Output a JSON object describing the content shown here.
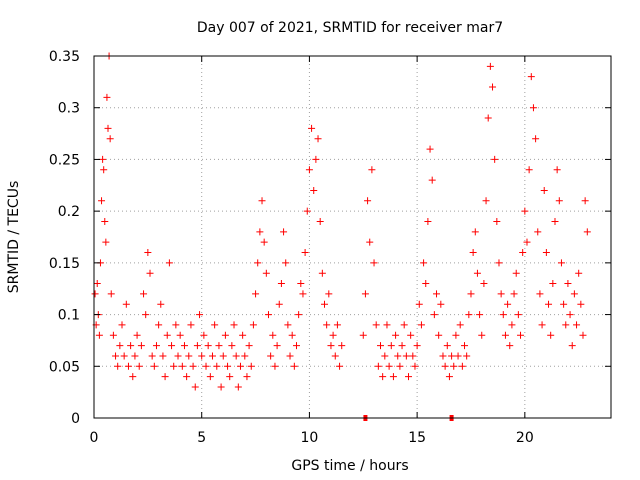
{
  "chart_data": {
    "type": "scatter",
    "title": "Day 007 of 2021, SRMTID for receiver mar7",
    "xlabel": "GPS time / hours",
    "ylabel": "SRMTID / TECUs",
    "xlim": [
      0,
      24
    ],
    "ylim": [
      0,
      0.35
    ],
    "xticks": [
      0,
      5,
      10,
      15,
      20
    ],
    "yticks": [
      0,
      0.05,
      0.1,
      0.15,
      0.2,
      0.25,
      0.3,
      0.35
    ],
    "xtick_labels": [
      "0",
      "5",
      "10",
      "15",
      "20"
    ],
    "ytick_labels": [
      "0",
      "0.05",
      "0.1",
      "0.15",
      "0.2",
      "0.25",
      "0.3",
      "0.35"
    ],
    "grid": true,
    "marker": "+",
    "color": "#ff0000",
    "data_gap_hours": [
      11.6,
      12.4
    ],
    "zero_markers_x": [
      12.6,
      16.6
    ],
    "series": [
      {
        "name": "SRMTID",
        "points": [
          [
            0.05,
            0.12
          ],
          [
            0.1,
            0.09
          ],
          [
            0.15,
            0.13
          ],
          [
            0.2,
            0.1
          ],
          [
            0.25,
            0.08
          ],
          [
            0.3,
            0.15
          ],
          [
            0.35,
            0.21
          ],
          [
            0.4,
            0.25
          ],
          [
            0.45,
            0.24
          ],
          [
            0.5,
            0.19
          ],
          [
            0.55,
            0.17
          ],
          [
            0.6,
            0.31
          ],
          [
            0.65,
            0.28
          ],
          [
            0.7,
            0.35
          ],
          [
            0.75,
            0.27
          ],
          [
            0.8,
            0.12
          ],
          [
            0.9,
            0.08
          ],
          [
            1.0,
            0.06
          ],
          [
            1.1,
            0.05
          ],
          [
            1.2,
            0.07
          ],
          [
            1.3,
            0.09
          ],
          [
            1.4,
            0.06
          ],
          [
            1.5,
            0.11
          ],
          [
            1.6,
            0.05
          ],
          [
            1.7,
            0.07
          ],
          [
            1.8,
            0.04
          ],
          [
            1.9,
            0.06
          ],
          [
            2.0,
            0.08
          ],
          [
            2.1,
            0.05
          ],
          [
            2.2,
            0.07
          ],
          [
            2.3,
            0.12
          ],
          [
            2.4,
            0.1
          ],
          [
            2.5,
            0.16
          ],
          [
            2.6,
            0.14
          ],
          [
            2.7,
            0.06
          ],
          [
            2.8,
            0.05
          ],
          [
            2.9,
            0.07
          ],
          [
            3.0,
            0.09
          ],
          [
            3.1,
            0.11
          ],
          [
            3.2,
            0.06
          ],
          [
            3.3,
            0.04
          ],
          [
            3.4,
            0.08
          ],
          [
            3.5,
            0.15
          ],
          [
            3.6,
            0.07
          ],
          [
            3.7,
            0.05
          ],
          [
            3.8,
            0.09
          ],
          [
            3.9,
            0.06
          ],
          [
            4.0,
            0.08
          ],
          [
            4.1,
            0.05
          ],
          [
            4.2,
            0.07
          ],
          [
            4.3,
            0.04
          ],
          [
            4.4,
            0.06
          ],
          [
            4.5,
            0.09
          ],
          [
            4.6,
            0.05
          ],
          [
            4.7,
            0.03
          ],
          [
            4.8,
            0.07
          ],
          [
            4.9,
            0.1
          ],
          [
            5.0,
            0.06
          ],
          [
            5.1,
            0.08
          ],
          [
            5.2,
            0.05
          ],
          [
            5.3,
            0.07
          ],
          [
            5.4,
            0.04
          ],
          [
            5.5,
            0.06
          ],
          [
            5.6,
            0.09
          ],
          [
            5.7,
            0.05
          ],
          [
            5.8,
            0.07
          ],
          [
            5.9,
            0.03
          ],
          [
            6.0,
            0.06
          ],
          [
            6.1,
            0.08
          ],
          [
            6.2,
            0.05
          ],
          [
            6.3,
            0.04
          ],
          [
            6.4,
            0.07
          ],
          [
            6.5,
            0.09
          ],
          [
            6.6,
            0.06
          ],
          [
            6.7,
            0.03
          ],
          [
            6.8,
            0.05
          ],
          [
            6.9,
            0.08
          ],
          [
            7.0,
            0.06
          ],
          [
            7.1,
            0.04
          ],
          [
            7.2,
            0.07
          ],
          [
            7.3,
            0.05
          ],
          [
            7.4,
            0.09
          ],
          [
            7.5,
            0.12
          ],
          [
            7.6,
            0.15
          ],
          [
            7.7,
            0.18
          ],
          [
            7.8,
            0.21
          ],
          [
            7.9,
            0.17
          ],
          [
            8.0,
            0.14
          ],
          [
            8.1,
            0.1
          ],
          [
            8.2,
            0.06
          ],
          [
            8.3,
            0.08
          ],
          [
            8.4,
            0.05
          ],
          [
            8.5,
            0.07
          ],
          [
            8.6,
            0.11
          ],
          [
            8.7,
            0.13
          ],
          [
            8.8,
            0.18
          ],
          [
            8.9,
            0.15
          ],
          [
            9.0,
            0.09
          ],
          [
            9.1,
            0.06
          ],
          [
            9.2,
            0.08
          ],
          [
            9.3,
            0.05
          ],
          [
            9.4,
            0.07
          ],
          [
            9.5,
            0.1
          ],
          [
            9.6,
            0.13
          ],
          [
            9.7,
            0.12
          ],
          [
            9.8,
            0.16
          ],
          [
            9.9,
            0.2
          ],
          [
            10.0,
            0.24
          ],
          [
            10.1,
            0.28
          ],
          [
            10.2,
            0.22
          ],
          [
            10.3,
            0.25
          ],
          [
            10.4,
            0.27
          ],
          [
            10.5,
            0.19
          ],
          [
            10.6,
            0.14
          ],
          [
            10.7,
            0.11
          ],
          [
            10.8,
            0.09
          ],
          [
            10.9,
            0.12
          ],
          [
            11.0,
            0.07
          ],
          [
            11.1,
            0.08
          ],
          [
            11.2,
            0.06
          ],
          [
            11.3,
            0.09
          ],
          [
            11.4,
            0.05
          ],
          [
            11.5,
            0.07
          ],
          [
            12.5,
            0.08
          ],
          [
            12.6,
            0.12
          ],
          [
            12.7,
            0.21
          ],
          [
            12.8,
            0.17
          ],
          [
            12.9,
            0.24
          ],
          [
            13.0,
            0.15
          ],
          [
            13.1,
            0.09
          ],
          [
            13.2,
            0.05
          ],
          [
            13.3,
            0.07
          ],
          [
            13.4,
            0.04
          ],
          [
            13.5,
            0.06
          ],
          [
            13.6,
            0.09
          ],
          [
            13.7,
            0.05
          ],
          [
            13.8,
            0.07
          ],
          [
            13.9,
            0.04
          ],
          [
            14.0,
            0.08
          ],
          [
            14.1,
            0.06
          ],
          [
            14.2,
            0.05
          ],
          [
            14.3,
            0.07
          ],
          [
            14.4,
            0.09
          ],
          [
            14.5,
            0.06
          ],
          [
            14.6,
            0.04
          ],
          [
            14.7,
            0.08
          ],
          [
            14.8,
            0.06
          ],
          [
            14.9,
            0.05
          ],
          [
            15.0,
            0.07
          ],
          [
            15.1,
            0.11
          ],
          [
            15.2,
            0.09
          ],
          [
            15.3,
            0.15
          ],
          [
            15.4,
            0.13
          ],
          [
            15.5,
            0.19
          ],
          [
            15.6,
            0.26
          ],
          [
            15.7,
            0.23
          ],
          [
            15.8,
            0.1
          ],
          [
            15.9,
            0.12
          ],
          [
            16.0,
            0.08
          ],
          [
            16.1,
            0.11
          ],
          [
            16.2,
            0.06
          ],
          [
            16.3,
            0.05
          ],
          [
            16.4,
            0.07
          ],
          [
            16.5,
            0.04
          ],
          [
            16.6,
            0.06
          ],
          [
            16.7,
            0.05
          ],
          [
            16.8,
            0.08
          ],
          [
            16.9,
            0.06
          ],
          [
            17.0,
            0.09
          ],
          [
            17.1,
            0.05
          ],
          [
            17.2,
            0.07
          ],
          [
            17.3,
            0.06
          ],
          [
            17.4,
            0.1
          ],
          [
            17.5,
            0.12
          ],
          [
            17.6,
            0.16
          ],
          [
            17.7,
            0.18
          ],
          [
            17.8,
            0.14
          ],
          [
            17.9,
            0.1
          ],
          [
            18.0,
            0.08
          ],
          [
            18.1,
            0.13
          ],
          [
            18.2,
            0.21
          ],
          [
            18.3,
            0.29
          ],
          [
            18.4,
            0.34
          ],
          [
            18.5,
            0.32
          ],
          [
            18.6,
            0.25
          ],
          [
            18.7,
            0.19
          ],
          [
            18.8,
            0.15
          ],
          [
            18.9,
            0.12
          ],
          [
            19.0,
            0.1
          ],
          [
            19.1,
            0.08
          ],
          [
            19.2,
            0.11
          ],
          [
            19.3,
            0.07
          ],
          [
            19.4,
            0.09
          ],
          [
            19.5,
            0.12
          ],
          [
            19.6,
            0.14
          ],
          [
            19.7,
            0.1
          ],
          [
            19.8,
            0.08
          ],
          [
            19.9,
            0.16
          ],
          [
            20.0,
            0.2
          ],
          [
            20.1,
            0.17
          ],
          [
            20.2,
            0.24
          ],
          [
            20.3,
            0.33
          ],
          [
            20.4,
            0.3
          ],
          [
            20.5,
            0.27
          ],
          [
            20.6,
            0.18
          ],
          [
            20.7,
            0.12
          ],
          [
            20.8,
            0.09
          ],
          [
            20.9,
            0.22
          ],
          [
            21.0,
            0.16
          ],
          [
            21.1,
            0.11
          ],
          [
            21.2,
            0.08
          ],
          [
            21.3,
            0.13
          ],
          [
            21.4,
            0.19
          ],
          [
            21.5,
            0.24
          ],
          [
            21.6,
            0.21
          ],
          [
            21.7,
            0.15
          ],
          [
            21.8,
            0.11
          ],
          [
            21.9,
            0.09
          ],
          [
            22.0,
            0.13
          ],
          [
            22.1,
            0.1
          ],
          [
            22.2,
            0.07
          ],
          [
            22.3,
            0.12
          ],
          [
            22.4,
            0.09
          ],
          [
            22.5,
            0.14
          ],
          [
            22.6,
            0.11
          ],
          [
            22.7,
            0.08
          ],
          [
            22.8,
            0.21
          ],
          [
            22.9,
            0.18
          ]
        ]
      }
    ]
  }
}
